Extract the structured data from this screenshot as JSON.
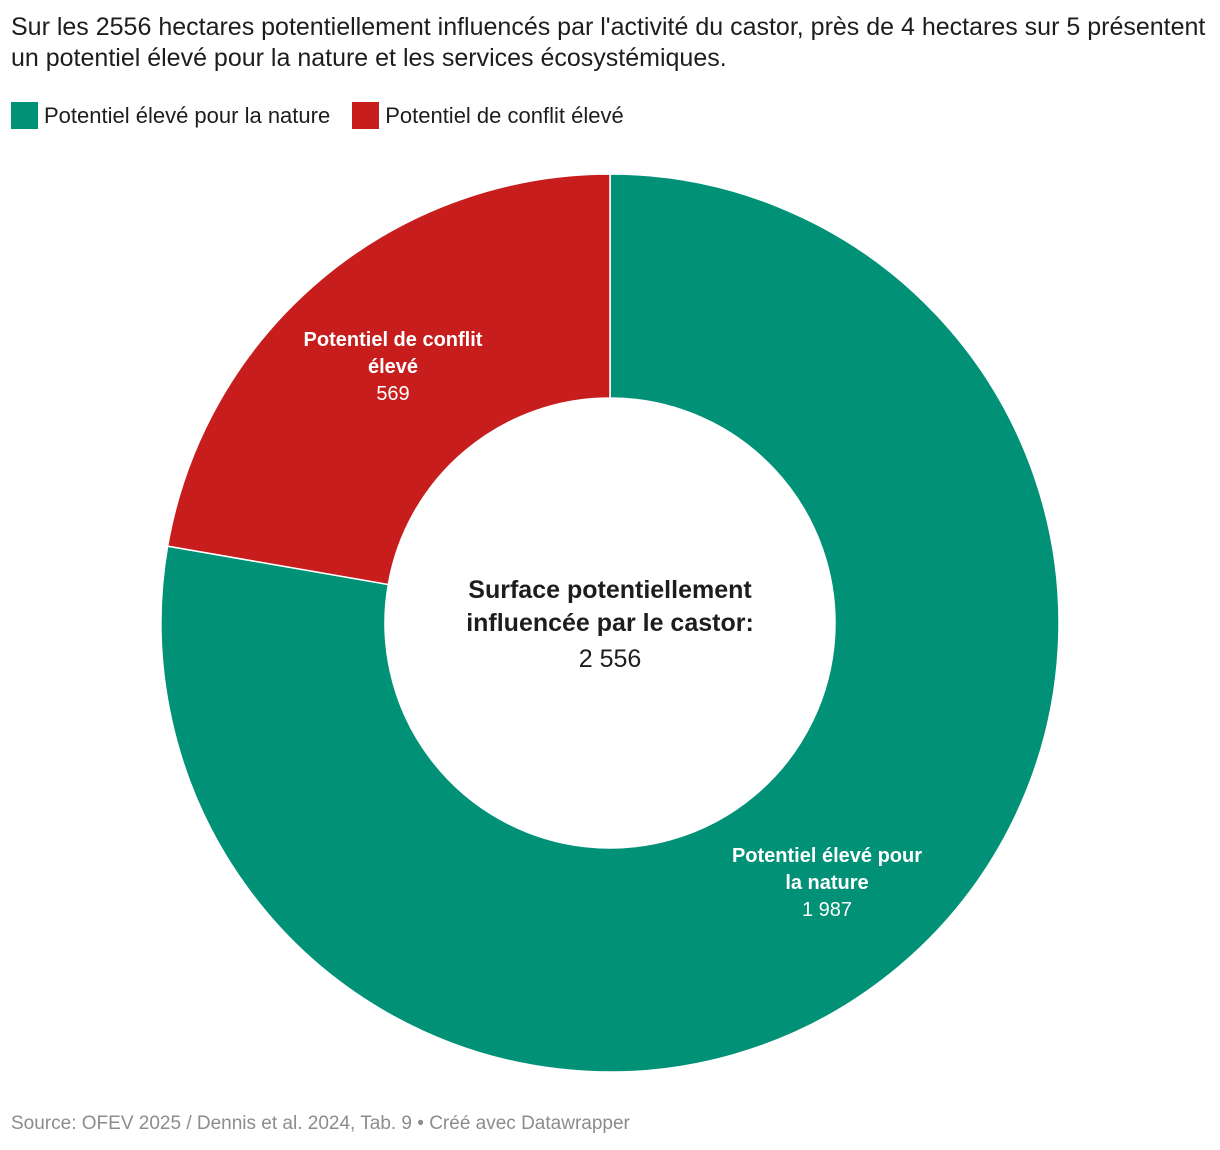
{
  "title": "Sur les 2556 hectares potentiellement influencés par l'activité du castor, près de 4 hectares sur 5 présentent un potentiel élevé pour la nature et les services écosystémiques.",
  "legend": [
    {
      "label": "Potentiel élevé pour la nature",
      "color": "#009176"
    },
    {
      "label": "Potentiel de conflit élevé",
      "color": "#c71e1d"
    }
  ],
  "chart_data": {
    "type": "pie",
    "variant": "donut",
    "slices": [
      {
        "label": "Potentiel élevé pour la nature",
        "value": 1987,
        "value_text": "1 987",
        "color": "#009176"
      },
      {
        "label": "Potentiel de conflit élevé",
        "value": 569,
        "value_text": "569",
        "color": "#c71e1d"
      }
    ],
    "center_label": "Surface potentiellement influencée par le castor:",
    "center_value": "2 556",
    "legend_position": "top-left"
  },
  "footer": "Source: OFEV 2025 / Dennis et al. 2024, Tab. 9 • Créé avec Datawrapper"
}
